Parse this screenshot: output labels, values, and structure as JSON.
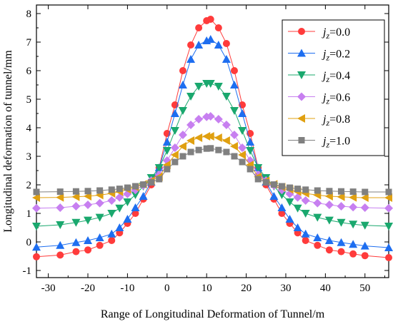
{
  "chart_data": {
    "type": "line",
    "xlabel": "Range of Longitudinal Deformation of Tunnel/m",
    "ylabel": "Longitudinal deformation of tunnel/mm",
    "xlim": [
      -33,
      56
    ],
    "ylim": [
      -1.25,
      8.3
    ],
    "xticks": [
      -30,
      -20,
      -10,
      0,
      10,
      20,
      30,
      40,
      50
    ],
    "yticks": [
      -1,
      0,
      1,
      2,
      3,
      4,
      5,
      6,
      7,
      8
    ],
    "legend_position": "top-right",
    "grid": false,
    "x": [
      -33,
      -27,
      -23,
      -20,
      -17,
      -14,
      -12,
      -10,
      -8,
      -6,
      -4,
      -2,
      0,
      2,
      4,
      6,
      8,
      10,
      11,
      13,
      15,
      17,
      19,
      21,
      23,
      25,
      27,
      29,
      31,
      33,
      35,
      38,
      41,
      44,
      47,
      50,
      56
    ],
    "series": [
      {
        "name": "j_z=0.0",
        "label_base": "j",
        "label_sub": "z",
        "label_value": "=0.0",
        "color": "#ff3b3b",
        "marker": "circle",
        "values": [
          -0.52,
          -0.46,
          -0.34,
          -0.28,
          -0.12,
          0.05,
          0.32,
          0.65,
          1.0,
          1.5,
          2.0,
          2.6,
          3.8,
          4.8,
          6.0,
          6.9,
          7.5,
          7.75,
          7.8,
          7.5,
          6.95,
          6.0,
          4.8,
          3.8,
          2.6,
          2.0,
          1.5,
          1.0,
          0.65,
          0.32,
          0.05,
          -0.12,
          -0.28,
          -0.34,
          -0.42,
          -0.48,
          -0.55
        ]
      },
      {
        "name": "j_z=0.2",
        "label_base": "j",
        "label_sub": "z",
        "label_value": "=0.2",
        "color": "#1e6ef0",
        "marker": "triangle-up",
        "values": [
          -0.18,
          -0.12,
          -0.02,
          0.05,
          0.15,
          0.28,
          0.5,
          0.8,
          1.2,
          1.6,
          2.1,
          2.6,
          3.5,
          4.5,
          5.5,
          6.4,
          6.9,
          7.05,
          7.1,
          6.9,
          6.4,
          5.5,
          4.5,
          3.5,
          2.6,
          2.1,
          1.6,
          1.2,
          0.8,
          0.5,
          0.28,
          0.15,
          0.05,
          -0.02,
          -0.08,
          -0.14,
          -0.2
        ]
      },
      {
        "name": "j_z=0.4",
        "label_base": "j",
        "label_sub": "z",
        "label_value": "=0.4",
        "color": "#1aa86e",
        "marker": "triangle-down",
        "values": [
          0.55,
          0.6,
          0.68,
          0.76,
          0.86,
          1.0,
          1.18,
          1.4,
          1.65,
          1.95,
          2.25,
          2.6,
          3.2,
          3.9,
          4.6,
          5.1,
          5.45,
          5.55,
          5.55,
          5.45,
          5.1,
          4.6,
          3.9,
          3.2,
          2.6,
          2.25,
          1.95,
          1.65,
          1.4,
          1.18,
          1.0,
          0.86,
          0.76,
          0.68,
          0.62,
          0.58,
          0.55
        ]
      },
      {
        "name": "j_z=0.6",
        "label_base": "j",
        "label_sub": "z",
        "label_value": "=0.6",
        "color": "#c77ff0",
        "marker": "diamond",
        "values": [
          1.18,
          1.2,
          1.25,
          1.3,
          1.36,
          1.45,
          1.56,
          1.68,
          1.82,
          1.98,
          2.15,
          2.35,
          2.85,
          3.3,
          3.75,
          4.1,
          4.3,
          4.38,
          4.4,
          4.3,
          4.1,
          3.75,
          3.3,
          2.85,
          2.35,
          2.15,
          1.98,
          1.82,
          1.68,
          1.56,
          1.45,
          1.36,
          1.3,
          1.25,
          1.22,
          1.2,
          1.18
        ]
      },
      {
        "name": "j_z=0.8",
        "label_base": "j",
        "label_sub": "z",
        "label_value": "=0.8",
        "color": "#e0a010",
        "marker": "triangle-left",
        "values": [
          1.55,
          1.56,
          1.58,
          1.6,
          1.64,
          1.7,
          1.76,
          1.84,
          1.92,
          2.02,
          2.14,
          2.28,
          2.7,
          3.05,
          3.35,
          3.55,
          3.65,
          3.7,
          3.7,
          3.65,
          3.55,
          3.35,
          3.05,
          2.7,
          2.28,
          2.14,
          2.02,
          1.92,
          1.84,
          1.76,
          1.7,
          1.64,
          1.6,
          1.58,
          1.56,
          1.55,
          1.55
        ]
      },
      {
        "name": "j_z=1.0",
        "label_base": "j",
        "label_sub": "z",
        "label_value": "=1.0",
        "color": "#808080",
        "marker": "square",
        "values": [
          1.75,
          1.76,
          1.77,
          1.78,
          1.8,
          1.83,
          1.86,
          1.9,
          1.95,
          2.01,
          2.09,
          2.2,
          2.55,
          2.8,
          3.0,
          3.15,
          3.22,
          3.27,
          3.28,
          3.22,
          3.15,
          3.0,
          2.8,
          2.55,
          2.2,
          2.09,
          2.01,
          1.95,
          1.9,
          1.86,
          1.83,
          1.8,
          1.78,
          1.77,
          1.76,
          1.75,
          1.75
        ]
      }
    ]
  }
}
